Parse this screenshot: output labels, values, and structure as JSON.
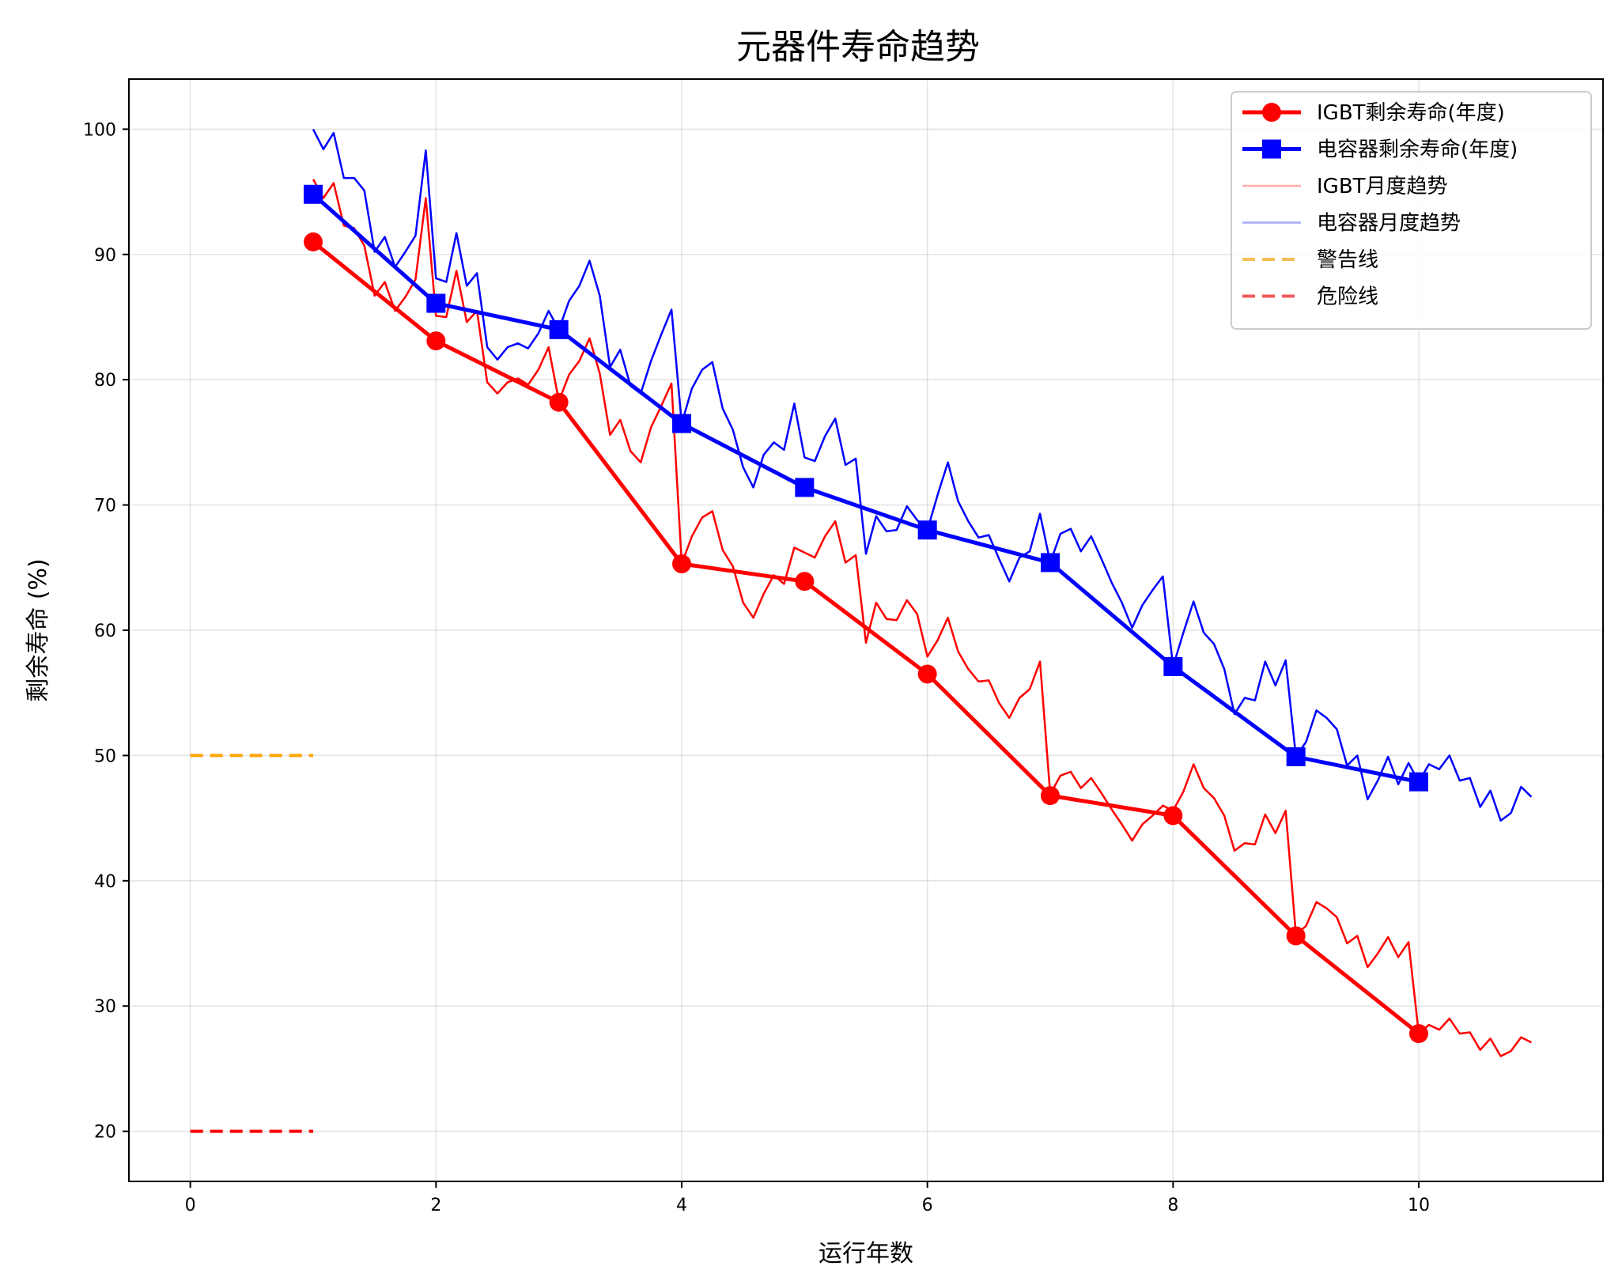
{
  "chart_data": {
    "type": "line",
    "title": "元器件寿命趋势",
    "xlabel": "运行年数",
    "ylabel": "剩余寿命 (%)",
    "xlim": [
      -0.5,
      11.5
    ],
    "ylim": [
      16,
      104
    ],
    "xticks": [
      0,
      2,
      4,
      6,
      8,
      10
    ],
    "yticks": [
      20,
      30,
      40,
      50,
      60,
      70,
      80,
      90,
      100
    ],
    "grid": true,
    "legend_position": "top-right",
    "series": [
      {
        "name": "IGBT剩余寿命(年度)",
        "color": "#ff0000",
        "marker": "circle",
        "x": [
          1,
          2,
          3,
          4,
          5,
          6,
          7,
          8,
          9,
          10
        ],
        "y": [
          91.0,
          83.1,
          78.2,
          65.3,
          63.9,
          56.5,
          46.8,
          45.2,
          35.6,
          27.8
        ]
      },
      {
        "name": "电容器剩余寿命(年度)",
        "color": "#0000ff",
        "marker": "square",
        "x": [
          1,
          2,
          3,
          4,
          5,
          6,
          7,
          8,
          9,
          10
        ],
        "y": [
          94.8,
          86.1,
          84.0,
          76.5,
          71.4,
          68.0,
          65.4,
          57.1,
          49.9,
          47.9
        ]
      },
      {
        "name": "IGBT月度趋势",
        "color": "#ff0000",
        "legend_color": "#ffaaaa",
        "x_start": 1,
        "x_step": 0.0833333,
        "y": [
          96.0,
          94.5,
          95.7,
          92.3,
          92.1,
          90.7,
          86.7,
          87.8,
          85.5,
          86.6,
          88.0,
          94.5,
          85.1,
          85.0,
          88.7,
          84.6,
          85.5,
          79.8,
          78.9,
          79.8,
          80.1,
          79.6,
          80.8,
          82.6,
          78.3,
          80.4,
          81.5,
          83.3,
          80.5,
          75.6,
          76.8,
          74.3,
          73.4,
          76.2,
          77.9,
          79.7,
          65.3,
          67.5,
          69.0,
          69.5,
          66.4,
          65.1,
          62.2,
          61.0,
          62.9,
          64.4,
          63.7,
          66.6,
          66.2,
          65.8,
          67.5,
          68.7,
          65.4,
          66.0,
          59.0,
          62.2,
          60.9,
          60.8,
          62.4,
          61.3,
          57.9,
          59.2,
          61.0,
          58.3,
          56.9,
          55.9,
          56.0,
          54.2,
          53.0,
          54.6,
          55.3,
          57.5,
          46.9,
          48.4,
          48.7,
          47.4,
          48.2,
          47.0,
          45.7,
          44.5,
          43.2,
          44.5,
          45.2,
          46.0,
          45.6,
          47.1,
          49.3,
          47.4,
          46.6,
          45.2,
          42.4,
          43.0,
          42.9,
          45.3,
          43.8,
          45.6,
          35.7,
          36.4,
          38.3,
          37.8,
          37.1,
          35.0,
          35.6,
          33.1,
          34.2,
          35.5,
          33.9,
          35.1,
          27.8,
          28.5,
          28.1,
          29.0,
          27.8,
          27.9,
          26.5,
          27.4,
          26.0,
          26.4,
          27.5,
          27.1
        ]
      },
      {
        "name": "电容器月度趋势",
        "color": "#0000ff",
        "legend_color": "#aaaaff",
        "x_start": 1,
        "x_step": 0.0833333,
        "y": [
          100.0,
          98.4,
          99.7,
          96.1,
          96.1,
          95.1,
          90.2,
          91.4,
          89.0,
          90.2,
          91.5,
          98.3,
          88.1,
          87.8,
          91.7,
          87.5,
          88.5,
          82.6,
          81.6,
          82.6,
          82.9,
          82.5,
          83.7,
          85.5,
          84.0,
          86.3,
          87.5,
          89.5,
          86.7,
          81.0,
          82.4,
          79.5,
          78.9,
          81.5,
          83.6,
          85.6,
          76.5,
          79.3,
          80.8,
          81.4,
          77.7,
          76.0,
          73.0,
          71.4,
          74.0,
          75.0,
          74.4,
          78.1,
          73.8,
          73.5,
          75.5,
          76.9,
          73.2,
          73.7,
          66.1,
          69.1,
          67.9,
          68.0,
          69.9,
          68.8,
          68.0,
          70.8,
          73.4,
          70.3,
          68.7,
          67.4,
          67.6,
          65.7,
          63.9,
          65.8,
          66.3,
          69.3,
          65.4,
          67.7,
          68.1,
          66.3,
          67.5,
          65.7,
          63.8,
          62.2,
          60.2,
          62.0,
          63.2,
          64.3,
          57.1,
          59.8,
          62.3,
          59.8,
          58.9,
          56.9,
          53.3,
          54.6,
          54.4,
          57.5,
          55.6,
          57.6,
          49.9,
          51.1,
          53.6,
          53.0,
          52.1,
          49.2,
          50.0,
          46.5,
          48.0,
          49.9,
          47.7,
          49.4,
          47.9,
          49.3,
          48.9,
          50.0,
          48.0,
          48.2,
          45.9,
          47.2,
          44.8,
          45.4,
          47.5,
          46.7
        ]
      },
      {
        "name": "警告线",
        "color": "#ffa500",
        "legend_color": "#f5be58",
        "dashed": true,
        "x": [
          0,
          1
        ],
        "y": [
          50,
          50
        ]
      },
      {
        "name": "危险线",
        "color": "#ff0000",
        "legend_color": "#f25a5a",
        "dashed": true,
        "x": [
          0,
          1
        ],
        "y": [
          20,
          20
        ]
      }
    ]
  }
}
